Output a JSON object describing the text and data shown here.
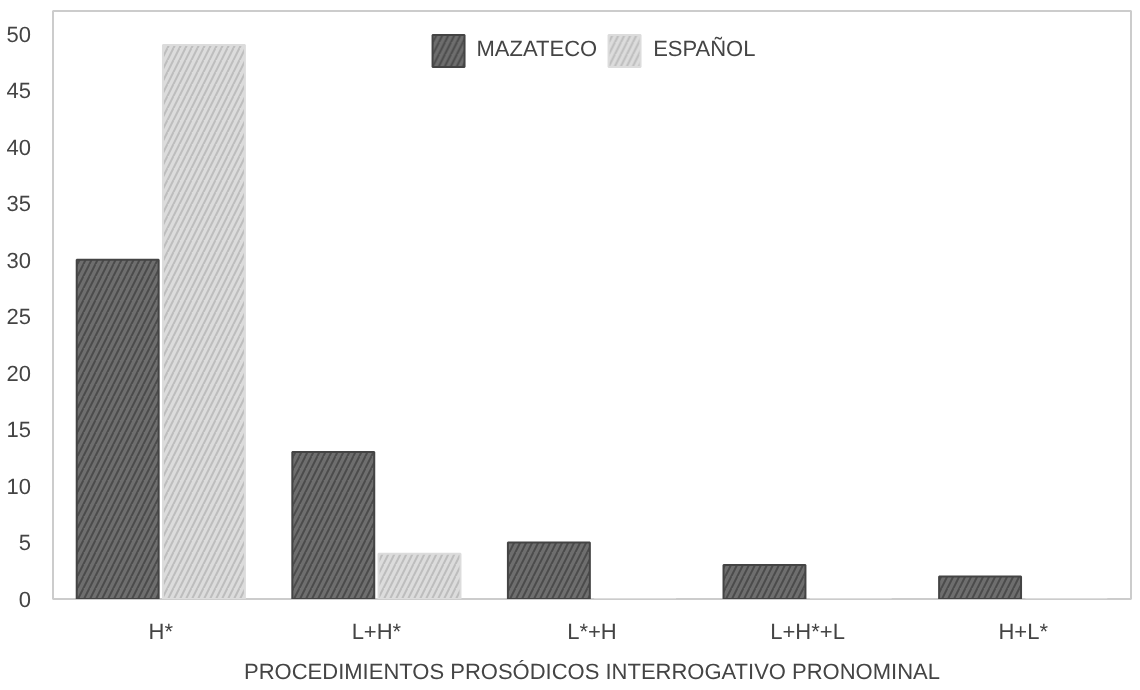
{
  "chart_data": {
    "type": "bar",
    "xlabel": "PROCEDIMIENTOS PROSÓDICOS INTERROGATIVO PRONOMINAL",
    "categories": [
      "H*",
      "L+H*",
      "L*+H",
      "L+H*+L",
      "H+L*"
    ],
    "series": [
      {
        "name": "MAZATECO",
        "color": "#6e6e6e",
        "values": [
          30,
          13,
          5,
          3,
          2
        ]
      },
      {
        "name": "ESPAÑOL",
        "color": "#dcdcdc",
        "values": [
          49,
          4,
          0,
          0,
          0
        ]
      }
    ],
    "ylim": [
      0,
      52
    ],
    "yticks": [
      0,
      5,
      10,
      15,
      20,
      25,
      30,
      35,
      40,
      45,
      50
    ],
    "grid": false,
    "legend": "top"
  }
}
